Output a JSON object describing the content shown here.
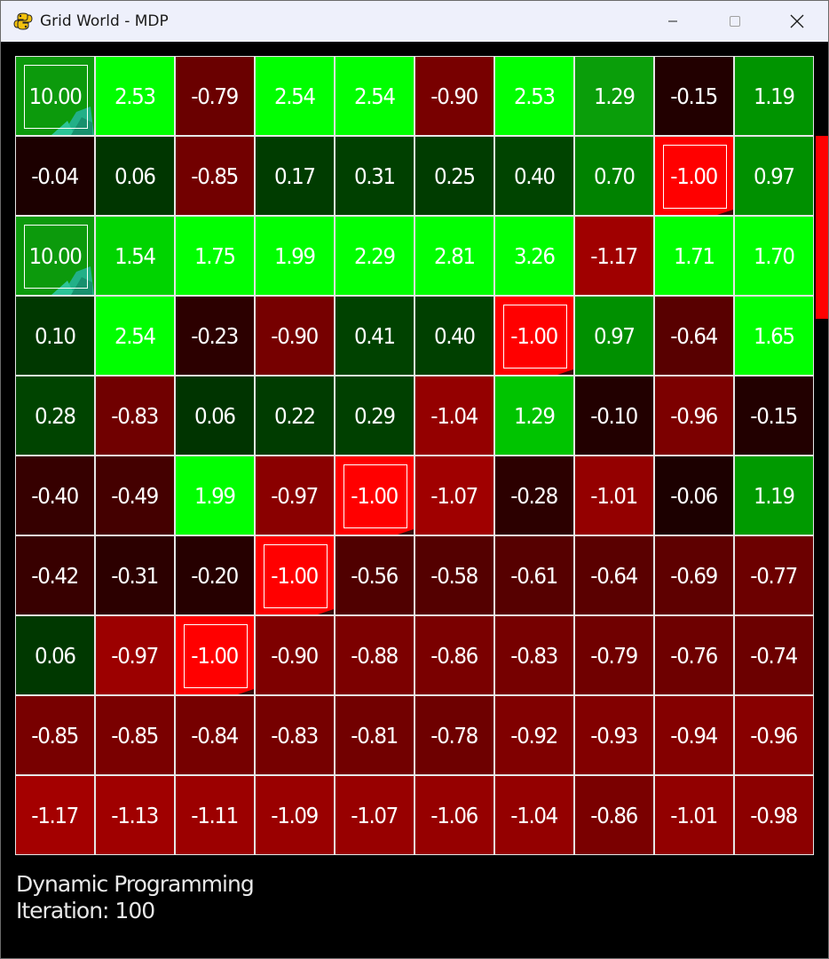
{
  "window": {
    "title": "Grid World - MDP",
    "app_icon": "python-snake-icon",
    "controls": [
      "minimize-icon",
      "maximize-icon",
      "close-icon"
    ]
  },
  "grid": {
    "rows": 10,
    "cols": 10,
    "values": [
      [
        "10.00",
        "2.53",
        "-0.79",
        "2.54",
        "2.54",
        "-0.90",
        "2.53",
        "1.29",
        "-0.15",
        "1.19"
      ],
      [
        "-0.04",
        "0.06",
        "-0.85",
        "0.17",
        "0.31",
        "0.25",
        "0.40",
        "0.70",
        "-1.00",
        "0.97"
      ],
      [
        "10.00",
        "1.54",
        "1.75",
        "1.99",
        "2.29",
        "2.81",
        "3.26",
        "-1.17",
        "1.71",
        "1.70"
      ],
      [
        "0.10",
        "2.54",
        "-0.23",
        "-0.90",
        "0.41",
        "0.40",
        "-1.00",
        "0.97",
        "-0.64",
        "1.65"
      ],
      [
        "0.28",
        "-0.83",
        "0.06",
        "0.22",
        "0.29",
        "-1.04",
        "1.29",
        "-0.10",
        "-0.96",
        "-0.15"
      ],
      [
        "-0.40",
        "-0.49",
        "1.99",
        "-0.97",
        "-1.00",
        "-1.07",
        "-0.28",
        "-1.01",
        "-0.06",
        "1.19"
      ],
      [
        "-0.42",
        "-0.31",
        "-0.20",
        "-1.00",
        "-0.56",
        "-0.58",
        "-0.61",
        "-0.64",
        "-0.69",
        "-0.77"
      ],
      [
        "0.06",
        "-0.97",
        "-1.00",
        "-0.90",
        "-0.88",
        "-0.86",
        "-0.83",
        "-0.79",
        "-0.76",
        "-0.74"
      ],
      [
        "-0.85",
        "-0.85",
        "-0.84",
        "-0.83",
        "-0.81",
        "-0.78",
        "-0.92",
        "-0.93",
        "-0.94",
        "-0.96"
      ],
      [
        "-1.17",
        "-1.13",
        "-1.11",
        "-1.09",
        "-1.07",
        "-1.06",
        "-1.04",
        "-0.86",
        "-1.01",
        "-0.98"
      ]
    ],
    "colors": [
      [
        "#0c9a0c",
        "#00ff00",
        "#6a0000",
        "#00ff00",
        "#00ff00",
        "#780000",
        "#00ff00",
        "#0a9e0a",
        "#220000",
        "#009400"
      ],
      [
        "#1c0000",
        "#003600",
        "#720000",
        "#003c00",
        "#004000",
        "#003c00",
        "#004400",
        "#008200",
        "#ff0000",
        "#009000"
      ],
      [
        "#0c9a0c",
        "#00d400",
        "#00ff00",
        "#00ff00",
        "#00ff00",
        "#00ff00",
        "#00ff00",
        "#a00000",
        "#00ff00",
        "#00ff00"
      ],
      [
        "#003800",
        "#00ff00",
        "#2c0000",
        "#760000",
        "#004200",
        "#004000",
        "#ff0000",
        "#009000",
        "#580000",
        "#00ff00"
      ],
      [
        "#004400",
        "#700000",
        "#003400",
        "#003c00",
        "#004000",
        "#940000",
        "#00c400",
        "#220000",
        "#7c0000",
        "#220000"
      ],
      [
        "#360000",
        "#440000",
        "#00ff00",
        "#8a0000",
        "#ff0000",
        "#a00000",
        "#2c0000",
        "#940000",
        "#1c0000",
        "#009a00"
      ],
      [
        "#380000",
        "#2c0000",
        "#260000",
        "#ff0000",
        "#500000",
        "#540000",
        "#560000",
        "#5a0000",
        "#5e0000",
        "#6c0000"
      ],
      [
        "#003800",
        "#9c0000",
        "#ff0000",
        "#7e0000",
        "#7c0000",
        "#7a0000",
        "#760000",
        "#700000",
        "#6e0000",
        "#6c0000"
      ],
      [
        "#780000",
        "#7a0000",
        "#760000",
        "#760000",
        "#720000",
        "#6e0000",
        "#800000",
        "#820000",
        "#840000",
        "#880000"
      ],
      [
        "#a40000",
        "#a00000",
        "#9c0000",
        "#9a0000",
        "#980000",
        "#960000",
        "#940000",
        "#7a0000",
        "#920000",
        "#8c0000"
      ]
    ],
    "goal_cells": [
      [
        0,
        0
      ],
      [
        2,
        0
      ]
    ],
    "trap_cells": [
      [
        1,
        8
      ],
      [
        3,
        6
      ],
      [
        5,
        4
      ],
      [
        6,
        3
      ],
      [
        7,
        2
      ]
    ]
  },
  "status": {
    "algorithm": "Dynamic Programming",
    "iteration": "Iteration: 100"
  }
}
